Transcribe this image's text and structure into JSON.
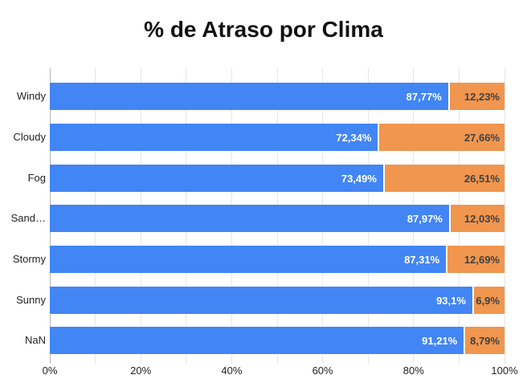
{
  "page": {
    "background": "#ffffff"
  },
  "chart_data": {
    "type": "bar",
    "orientation": "horizontal",
    "stacked": true,
    "title": "% de Atraso por Clima",
    "categories": [
      "Windy",
      "Cloudy",
      "Fog",
      "Sand…",
      "Stormy",
      "Sunny",
      "NaN"
    ],
    "series": [
      {
        "key": "blue-segment",
        "color": "#4285F4",
        "label_color": "#ffffff",
        "values": [
          87.77,
          72.34,
          73.49,
          87.97,
          87.31,
          93.1,
          91.21
        ],
        "labels": [
          "87,77%",
          "72,34%",
          "73,49%",
          "87,97%",
          "87,31%",
          "93,1%",
          "91,21%"
        ]
      },
      {
        "key": "orange-segment",
        "color": "#F0964E",
        "label_color": "#404040",
        "values": [
          12.23,
          27.66,
          26.51,
          12.03,
          12.69,
          6.9,
          8.79
        ],
        "labels": [
          "12,23%",
          "27,66%",
          "26,51%",
          "12,03%",
          "12,69%",
          "6,9%",
          "8,79%"
        ]
      }
    ],
    "xlim": [
      0,
      100
    ],
    "x_ticks": [
      {
        "value": 0,
        "label": "0%"
      },
      {
        "value": 20,
        "label": "20%"
      },
      {
        "value": 40,
        "label": "40%"
      },
      {
        "value": 60,
        "label": "60%"
      },
      {
        "value": 80,
        "label": "80%"
      },
      {
        "value": 100,
        "label": "100%"
      }
    ],
    "minor_gridline_step": 10,
    "legend": "none",
    "grid": "vertical"
  },
  "style": {
    "grid_color": "#e6e6e6",
    "axis_line_color": "#b7b7b7",
    "tick_label_color": "#222222",
    "title_color": "#111111"
  }
}
